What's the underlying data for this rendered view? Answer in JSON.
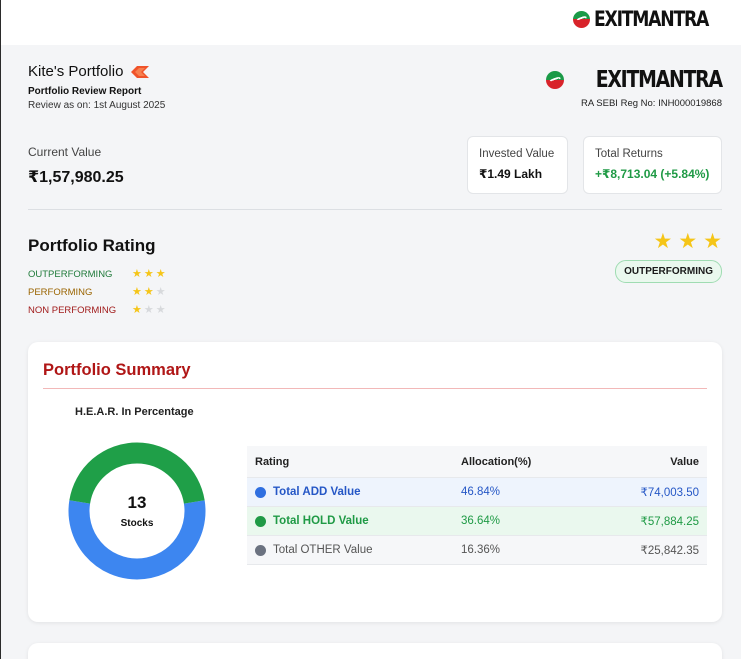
{
  "brand": {
    "name": "EXITMANTRA"
  },
  "header": {
    "title": "Kite's Portfolio",
    "subtitle": "Portfolio Review Report",
    "review_date": "Review as on: 1st August 2025",
    "reg_no": "RA SEBI Reg No: INH000019868"
  },
  "summary": {
    "current_label": "Current Value",
    "current_value": "₹1,57,980.25",
    "invested_label": "Invested Value",
    "invested_value": "₹1.49 Lakh",
    "returns_label": "Total Returns",
    "returns_value": "+₹8,713.04 (+5.84%)"
  },
  "rating": {
    "title": "Portfolio Rating",
    "legend": [
      {
        "label": "OUTPERFORMING",
        "stars": 3
      },
      {
        "label": "PERFORMING",
        "stars": 2
      },
      {
        "label": "NON PERFORMING",
        "stars": 1
      }
    ],
    "current_stars": 3,
    "current_badge": "OUTPERFORMING"
  },
  "portfolio_summary": {
    "title": "Portfolio Summary",
    "chart_caption": "H.E.A.R. In Percentage",
    "stock_count": "13",
    "stock_unit": "Stocks",
    "table": {
      "headers": [
        "Rating",
        "Allocation(%)",
        "Value"
      ],
      "rows": [
        {
          "label": "Total ADD Value",
          "allocation": "46.84%",
          "value": "₹74,003.50",
          "color": "#2f6fe0"
        },
        {
          "label": "Total HOLD Value",
          "allocation": "36.64%",
          "value": "₹57,884.25",
          "color": "#1f9a45"
        },
        {
          "label": "Total OTHER Value",
          "allocation": "16.36%",
          "value": "₹25,842.35",
          "color": "#6b7280"
        }
      ]
    }
  },
  "chart_data": {
    "type": "pie",
    "categories": [
      "Total ADD Value",
      "Total HOLD Value"
    ],
    "values": [
      55,
      45
    ],
    "colors": [
      "#3d86f0",
      "#1f9f48"
    ],
    "title": "H.E.A.R. In Percentage"
  },
  "colors": {
    "accent_red": "#b01616",
    "green": "#1f9a45",
    "blue": "#2f6fe0",
    "star": "#f5c518"
  }
}
